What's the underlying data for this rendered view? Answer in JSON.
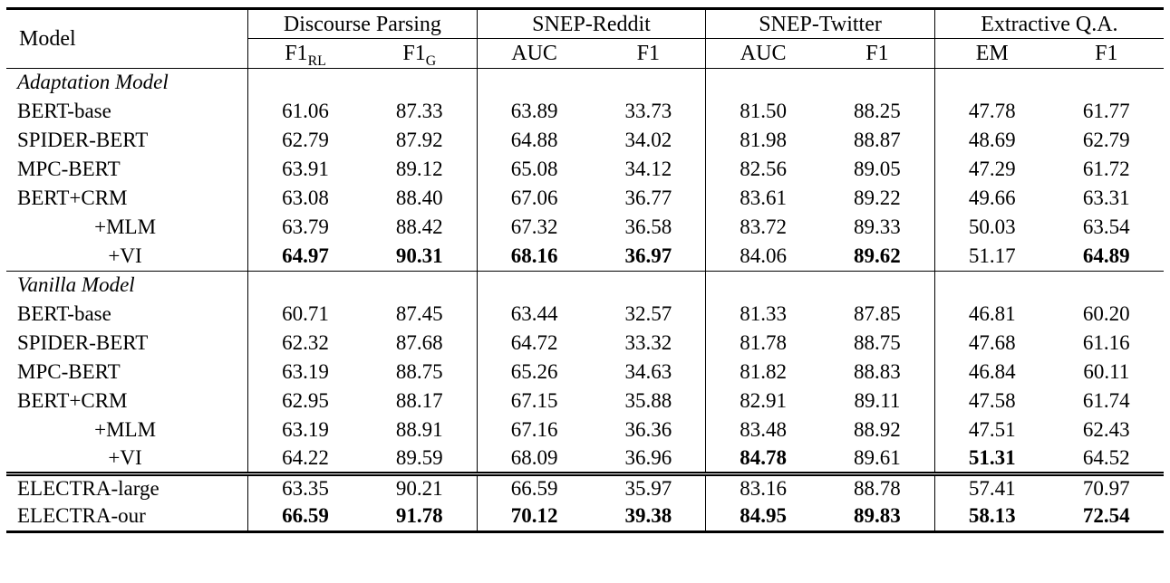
{
  "table": {
    "model_header": "Model",
    "groups": [
      {
        "label": "Discourse Parsing",
        "cols": [
          {
            "base": "F1",
            "sub": "RL"
          },
          {
            "base": "F1",
            "sub": "G"
          }
        ]
      },
      {
        "label": "SNEP-Reddit",
        "cols": [
          {
            "base": "AUC",
            "sub": ""
          },
          {
            "base": "F1",
            "sub": ""
          }
        ]
      },
      {
        "label": "SNEP-Twitter",
        "cols": [
          {
            "base": "AUC",
            "sub": ""
          },
          {
            "base": "F1",
            "sub": ""
          }
        ]
      },
      {
        "label": "Extractive Q.A.",
        "cols": [
          {
            "base": "EM",
            "sub": ""
          },
          {
            "base": "F1",
            "sub": ""
          }
        ]
      }
    ],
    "sections": [
      {
        "title": "Adaptation Model",
        "rule": "",
        "rows": [
          {
            "model": "BERT-base",
            "center": false,
            "values": [
              "61.06",
              "87.33",
              "63.89",
              "33.73",
              "81.50",
              "88.25",
              "47.78",
              "61.77"
            ],
            "bold": [
              0,
              0,
              0,
              0,
              0,
              0,
              0,
              0
            ]
          },
          {
            "model": "SPIDER-BERT",
            "center": false,
            "values": [
              "62.79",
              "87.92",
              "64.88",
              "34.02",
              "81.98",
              "88.87",
              "48.69",
              "62.79"
            ],
            "bold": [
              0,
              0,
              0,
              0,
              0,
              0,
              0,
              0
            ]
          },
          {
            "model": "MPC-BERT",
            "center": false,
            "values": [
              "63.91",
              "89.12",
              "65.08",
              "34.12",
              "82.56",
              "89.05",
              "47.29",
              "61.72"
            ],
            "bold": [
              0,
              0,
              0,
              0,
              0,
              0,
              0,
              0
            ]
          },
          {
            "model": "BERT+CRM",
            "center": false,
            "values": [
              "63.08",
              "88.40",
              "67.06",
              "36.77",
              "83.61",
              "89.22",
              "49.66",
              "63.31"
            ],
            "bold": [
              0,
              0,
              0,
              0,
              0,
              0,
              0,
              0
            ]
          },
          {
            "model": "+MLM",
            "center": true,
            "values": [
              "63.79",
              "88.42",
              "67.32",
              "36.58",
              "83.72",
              "89.33",
              "50.03",
              "63.54"
            ],
            "bold": [
              0,
              0,
              0,
              0,
              0,
              0,
              0,
              0
            ]
          },
          {
            "model": "+VI",
            "center": true,
            "values": [
              "64.97",
              "90.31",
              "68.16",
              "36.97",
              "84.06",
              "89.62",
              "51.17",
              "64.89"
            ],
            "bold": [
              1,
              1,
              1,
              1,
              0,
              1,
              0,
              1
            ]
          }
        ]
      },
      {
        "title": "Vanilla Model",
        "rule": "single",
        "rows": [
          {
            "model": "BERT-base",
            "center": false,
            "values": [
              "60.71",
              "87.45",
              "63.44",
              "32.57",
              "81.33",
              "87.85",
              "46.81",
              "60.20"
            ],
            "bold": [
              0,
              0,
              0,
              0,
              0,
              0,
              0,
              0
            ]
          },
          {
            "model": "SPIDER-BERT",
            "center": false,
            "values": [
              "62.32",
              "87.68",
              "64.72",
              "33.32",
              "81.78",
              "88.75",
              "47.68",
              "61.16"
            ],
            "bold": [
              0,
              0,
              0,
              0,
              0,
              0,
              0,
              0
            ]
          },
          {
            "model": "MPC-BERT",
            "center": false,
            "values": [
              "63.19",
              "88.75",
              "65.26",
              "34.63",
              "81.82",
              "88.83",
              "46.84",
              "60.11"
            ],
            "bold": [
              0,
              0,
              0,
              0,
              0,
              0,
              0,
              0
            ]
          },
          {
            "model": "BERT+CRM",
            "center": false,
            "values": [
              "62.95",
              "88.17",
              "67.15",
              "35.88",
              "82.91",
              "89.11",
              "47.58",
              "61.74"
            ],
            "bold": [
              0,
              0,
              0,
              0,
              0,
              0,
              0,
              0
            ]
          },
          {
            "model": "+MLM",
            "center": true,
            "values": [
              "63.19",
              "88.91",
              "67.16",
              "36.36",
              "83.48",
              "88.92",
              "47.51",
              "62.43"
            ],
            "bold": [
              0,
              0,
              0,
              0,
              0,
              0,
              0,
              0
            ]
          },
          {
            "model": "+VI",
            "center": true,
            "values": [
              "64.22",
              "89.59",
              "68.09",
              "36.96",
              "84.78",
              "89.61",
              "51.31",
              "64.52"
            ],
            "bold": [
              0,
              0,
              0,
              0,
              1,
              0,
              1,
              0
            ]
          }
        ]
      },
      {
        "title": null,
        "rule": "double",
        "rows": [
          {
            "model": "ELECTRA-large",
            "center": false,
            "values": [
              "63.35",
              "90.21",
              "66.59",
              "35.97",
              "83.16",
              "88.78",
              "57.41",
              "70.97"
            ],
            "bold": [
              0,
              0,
              0,
              0,
              0,
              0,
              0,
              0
            ]
          },
          {
            "model": "ELECTRA-our",
            "center": false,
            "values": [
              "66.59",
              "91.78",
              "70.12",
              "39.38",
              "84.95",
              "89.83",
              "58.13",
              "72.54"
            ],
            "bold": [
              1,
              1,
              1,
              1,
              1,
              1,
              1,
              1
            ]
          }
        ]
      }
    ]
  }
}
